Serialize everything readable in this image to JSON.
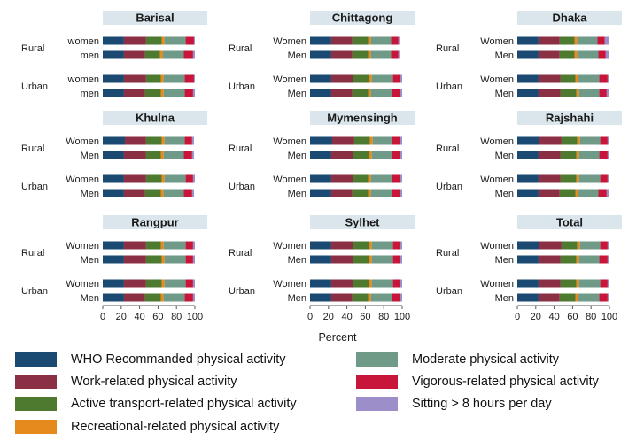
{
  "chart_data": {
    "type": "bar",
    "orientation": "horizontal-stacked",
    "xlabel": "Percent",
    "xlim": [
      0,
      100
    ],
    "xticks": [
      0,
      20,
      40,
      60,
      80,
      100
    ],
    "xtick_labels": [
      "0",
      "20",
      "40",
      "60",
      "80",
      "100"
    ],
    "group_labels": [
      "Rural",
      "Urban"
    ],
    "segments": [
      {
        "name": "WHO Recommanded physical activity",
        "color": "#1a4a72"
      },
      {
        "name": "Work-related physical activity",
        "color": "#8b2f44"
      },
      {
        "name": "Active transport-related physical activity",
        "color": "#4e7a30"
      },
      {
        "name": "Recreational-related physical activity",
        "color": "#e68a1e"
      },
      {
        "name": "Moderate physical activity",
        "color": "#6f9a88"
      },
      {
        "name": "Vigorous-related physical activity",
        "color": "#c8163a"
      },
      {
        "name": "Sitting > 8 hours per day",
        "color": "#9c8ec8"
      }
    ],
    "panels": [
      {
        "title": "Barisal",
        "bars": [
          {
            "group": "Rural",
            "label": "women",
            "values": [
              23,
              24,
              17,
              3,
              23,
              9,
              1
            ]
          },
          {
            "group": "Rural",
            "label": "men",
            "values": [
              23,
              23,
              16,
              3,
              23,
              10,
              2
            ]
          },
          {
            "group": "Urban",
            "label": "women",
            "values": [
              23,
              24,
              16,
              3,
              23,
              10,
              1
            ]
          },
          {
            "group": "Urban",
            "label": "men",
            "values": [
              23,
              23,
              17,
              3,
              23,
              9,
              2
            ]
          }
        ]
      },
      {
        "title": "Chittagong",
        "bars": [
          {
            "group": "Rural",
            "label": "Women",
            "values": [
              23,
              23,
              17,
              3,
              22,
              8,
              1
            ]
          },
          {
            "group": "Rural",
            "label": "Men",
            "values": [
              23,
              23,
              17,
              3,
              22,
              8,
              1
            ]
          },
          {
            "group": "Urban",
            "label": "Women",
            "values": [
              23,
              24,
              17,
              3,
              23,
              8,
              2
            ]
          },
          {
            "group": "Urban",
            "label": "Men",
            "values": [
              23,
              23,
              17,
              3,
              23,
              9,
              2
            ]
          }
        ]
      },
      {
        "title": "Dhaka",
        "bars": [
          {
            "group": "Rural",
            "label": "Women",
            "values": [
              23,
              23,
              16,
              3,
              22,
              8,
              5
            ]
          },
          {
            "group": "Rural",
            "label": "Men",
            "values": [
              23,
              23,
              16,
              3,
              23,
              8,
              4
            ]
          },
          {
            "group": "Urban",
            "label": "Women",
            "values": [
              23,
              24,
              16,
              3,
              23,
              9,
              2
            ]
          },
          {
            "group": "Urban",
            "label": "Men",
            "values": [
              23,
              24,
              17,
              3,
              22,
              8,
              3
            ]
          }
        ]
      },
      {
        "title": "Khulna",
        "bars": [
          {
            "group": "Rural",
            "label": "Women",
            "values": [
              24,
              23,
              17,
              3,
              22,
              8,
              2
            ]
          },
          {
            "group": "Rural",
            "label": "Men",
            "values": [
              23,
              24,
              16,
              3,
              22,
              9,
              2
            ]
          },
          {
            "group": "Urban",
            "label": "Women",
            "values": [
              23,
              24,
              17,
              3,
              23,
              8,
              2
            ]
          },
          {
            "group": "Urban",
            "label": "Men",
            "values": [
              23,
              23,
              17,
              3,
              22,
              9,
              2
            ]
          }
        ]
      },
      {
        "title": "Mymensingh",
        "bars": [
          {
            "group": "Rural",
            "label": "Women",
            "values": [
              24,
              24,
              17,
              3,
              21,
              9,
              2
            ]
          },
          {
            "group": "Rural",
            "label": "Men",
            "values": [
              23,
              24,
              17,
              3,
              22,
              9,
              2
            ]
          },
          {
            "group": "Urban",
            "label": "Women",
            "values": [
              23,
              24,
              16,
              3,
              23,
              9,
              2
            ]
          },
          {
            "group": "Urban",
            "label": "Men",
            "values": [
              23,
              23,
              17,
              3,
              23,
              9,
              2
            ]
          }
        ]
      },
      {
        "title": "Rajshahi",
        "bars": [
          {
            "group": "Rural",
            "label": "Women",
            "values": [
              24,
              24,
              17,
              3,
              22,
              8,
              2
            ]
          },
          {
            "group": "Rural",
            "label": "Men",
            "values": [
              23,
              24,
              17,
              3,
              22,
              9,
              2
            ]
          },
          {
            "group": "Urban",
            "label": "Women",
            "values": [
              23,
              24,
              17,
              3,
              23,
              8,
              2
            ]
          },
          {
            "group": "Urban",
            "label": "Men",
            "values": [
              23,
              23,
              17,
              3,
              22,
              9,
              3
            ]
          }
        ]
      },
      {
        "title": "Rangpur",
        "bars": [
          {
            "group": "Rural",
            "label": "Women",
            "values": [
              23,
              24,
              16,
              3,
              24,
              8,
              2
            ]
          },
          {
            "group": "Rural",
            "label": "Men",
            "values": [
              23,
              24,
              17,
              3,
              23,
              8,
              2
            ]
          },
          {
            "group": "Urban",
            "label": "Women",
            "values": [
              23,
              24,
              17,
              3,
              23,
              8,
              2
            ]
          },
          {
            "group": "Urban",
            "label": "Men",
            "values": [
              23,
              23,
              17,
              3,
              23,
              9,
              2
            ]
          }
        ]
      },
      {
        "title": "Sylhet",
        "bars": [
          {
            "group": "Rural",
            "label": "Women",
            "values": [
              23,
              24,
              17,
              3,
              23,
              8,
              2
            ]
          },
          {
            "group": "Rural",
            "label": "Men",
            "values": [
              23,
              24,
              17,
              3,
              23,
              8,
              2
            ]
          },
          {
            "group": "Urban",
            "label": "Women",
            "values": [
              23,
              24,
              17,
              3,
              23,
              8,
              2
            ]
          },
          {
            "group": "Urban",
            "label": "Men",
            "values": [
              23,
              23,
              17,
              3,
              23,
              9,
              2
            ]
          }
        ]
      },
      {
        "title": "Total",
        "bars": [
          {
            "group": "Rural",
            "label": "Women",
            "values": [
              24,
              24,
              17,
              3,
              22,
              8,
              2
            ]
          },
          {
            "group": "Rural",
            "label": "Men",
            "values": [
              23,
              24,
              17,
              3,
              22,
              9,
              2
            ]
          },
          {
            "group": "Urban",
            "label": "Women",
            "values": [
              23,
              24,
              17,
              3,
              23,
              8,
              2
            ]
          },
          {
            "group": "Urban",
            "label": "Men",
            "values": [
              23,
              23,
              17,
              3,
              23,
              9,
              2
            ]
          }
        ]
      }
    ]
  }
}
